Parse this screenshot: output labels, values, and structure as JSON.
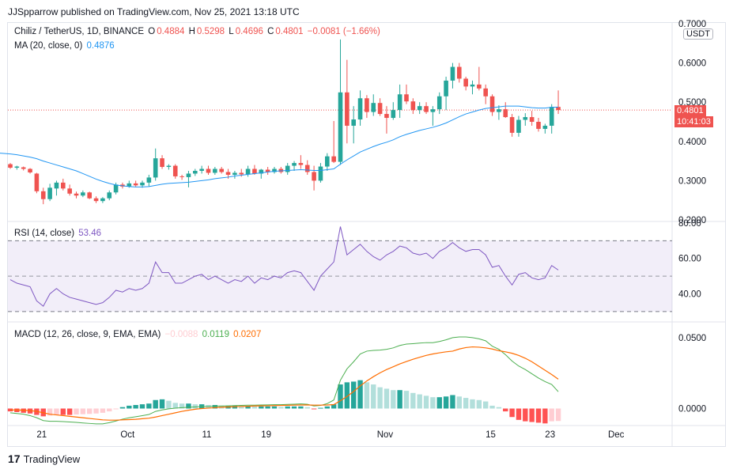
{
  "header": {
    "publisher": "JJSpparrow published on TradingView.com, Nov 25, 2021 13:18 UTC"
  },
  "symbol": {
    "name": "Chiliz / TetherUS, 1D, BINANCE",
    "open_label": "O",
    "open": "0.4884",
    "high_label": "H",
    "high": "0.5298",
    "low_label": "L",
    "low": "0.4696",
    "close_label": "C",
    "close": "0.4801",
    "change": "−0.0081 (−1.66%)"
  },
  "ma": {
    "label": "MA (20, close, 0)",
    "value": "0.4876"
  },
  "rsi": {
    "label": "RSI (14, close)",
    "value": "53.46"
  },
  "macd": {
    "label": "MACD (12, 26, close, 9, EMA, EMA)",
    "hist": "−0.0088",
    "macd": "0.0119",
    "signal": "0.0207"
  },
  "price_axis": {
    "unit": "USDT",
    "last_price": "0.4801",
    "countdown": "10:41:03",
    "ticks": [
      "0.7000",
      "0.6000",
      "0.5000",
      "0.4000",
      "0.3000",
      "0.2000"
    ]
  },
  "rsi_axis": {
    "ticks": [
      "80.00",
      "60.00",
      "40.00"
    ]
  },
  "macd_axis": {
    "ticks": [
      "0.0500",
      "0.0000"
    ]
  },
  "time_axis": {
    "ticks": [
      "21",
      "Oct",
      "11",
      "19",
      "Nov",
      "15",
      "23",
      "Dec"
    ]
  },
  "footer": {
    "brand": "TradingView"
  },
  "colors": {
    "up": "#26a69a",
    "down": "#ef5350",
    "ma": "#2196f3",
    "rsi": "#7e57c2",
    "macd": "#4caf50",
    "signal": "#ff6d00"
  },
  "chart_data": [
    {
      "type": "candlestick",
      "title": "Chiliz / TetherUS, 1D, BINANCE",
      "ylim": [
        0.2,
        0.7
      ],
      "x_ticks": [
        "21",
        "Oct",
        "11",
        "19",
        "Nov",
        "15",
        "23",
        "Dec"
      ],
      "candles": [
        [
          0.342,
          0.345,
          0.33,
          0.333
        ],
        [
          0.333,
          0.338,
          0.328,
          0.336
        ],
        [
          0.334,
          0.336,
          0.326,
          0.33
        ],
        [
          0.33,
          0.332,
          0.318,
          0.321
        ],
        [
          0.318,
          0.32,
          0.268,
          0.273
        ],
        [
          0.273,
          0.282,
          0.24,
          0.253
        ],
        [
          0.253,
          0.292,
          0.248,
          0.282
        ],
        [
          0.28,
          0.3,
          0.262,
          0.295
        ],
        [
          0.295,
          0.305,
          0.275,
          0.28
        ],
        [
          0.28,
          0.29,
          0.262,
          0.267
        ],
        [
          0.267,
          0.272,
          0.255,
          0.262
        ],
        [
          0.262,
          0.275,
          0.258,
          0.27
        ],
        [
          0.27,
          0.272,
          0.253,
          0.255
        ],
        [
          0.255,
          0.26,
          0.243,
          0.248
        ],
        [
          0.248,
          0.258,
          0.243,
          0.255
        ],
        [
          0.255,
          0.275,
          0.25,
          0.27
        ],
        [
          0.27,
          0.295,
          0.265,
          0.29
        ],
        [
          0.29,
          0.295,
          0.28,
          0.285
        ],
        [
          0.285,
          0.3,
          0.282,
          0.293
        ],
        [
          0.293,
          0.3,
          0.285,
          0.288
        ],
        [
          0.288,
          0.3,
          0.282,
          0.295
        ],
        [
          0.295,
          0.315,
          0.285,
          0.308
        ],
        [
          0.308,
          0.382,
          0.3,
          0.357
        ],
        [
          0.357,
          0.365,
          0.33,
          0.335
        ],
        [
          0.335,
          0.342,
          0.328,
          0.338
        ],
        [
          0.338,
          0.342,
          0.305,
          0.311
        ],
        [
          0.311,
          0.315,
          0.302,
          0.309
        ],
        [
          0.309,
          0.325,
          0.283,
          0.318
        ],
        [
          0.318,
          0.33,
          0.312,
          0.325
        ],
        [
          0.325,
          0.338,
          0.318,
          0.33
        ],
        [
          0.33,
          0.338,
          0.315,
          0.32
        ],
        [
          0.32,
          0.335,
          0.315,
          0.33
        ],
        [
          0.33,
          0.335,
          0.318,
          0.322
        ],
        [
          0.322,
          0.33,
          0.305,
          0.315
        ],
        [
          0.315,
          0.325,
          0.305,
          0.32
        ],
        [
          0.32,
          0.33,
          0.31,
          0.316
        ],
        [
          0.316,
          0.338,
          0.31,
          0.33
        ],
        [
          0.33,
          0.34,
          0.315,
          0.318
        ],
        [
          0.318,
          0.33,
          0.305,
          0.328
        ],
        [
          0.328,
          0.335,
          0.315,
          0.322
        ],
        [
          0.322,
          0.335,
          0.318,
          0.33
        ],
        [
          0.33,
          0.335,
          0.318,
          0.322
        ],
        [
          0.322,
          0.345,
          0.315,
          0.338
        ],
        [
          0.338,
          0.35,
          0.325,
          0.345
        ],
        [
          0.345,
          0.365,
          0.33,
          0.34
        ],
        [
          0.34,
          0.352,
          0.315,
          0.322
        ],
        [
          0.322,
          0.338,
          0.275,
          0.3
        ],
        [
          0.3,
          0.345,
          0.295,
          0.336
        ],
        [
          0.336,
          0.37,
          0.325,
          0.362
        ],
        [
          0.362,
          0.452,
          0.345,
          0.348
        ],
        [
          0.348,
          0.66,
          0.34,
          0.525
        ],
        [
          0.525,
          0.608,
          0.395,
          0.44
        ],
        [
          0.44,
          0.49,
          0.395,
          0.456
        ],
        [
          0.456,
          0.53,
          0.44,
          0.51
        ],
        [
          0.51,
          0.518,
          0.46,
          0.475
        ],
        [
          0.475,
          0.52,
          0.465,
          0.498
        ],
        [
          0.498,
          0.51,
          0.465,
          0.47
        ],
        [
          0.47,
          0.49,
          0.42,
          0.46
        ],
        [
          0.46,
          0.5,
          0.455,
          0.48
        ],
        [
          0.48,
          0.545,
          0.46,
          0.52
        ],
        [
          0.52,
          0.545,
          0.495,
          0.502
        ],
        [
          0.502,
          0.51,
          0.47,
          0.48
        ],
        [
          0.48,
          0.5,
          0.47,
          0.49
        ],
        [
          0.49,
          0.5,
          0.47,
          0.475
        ],
        [
          0.475,
          0.49,
          0.44,
          0.482
        ],
        [
          0.482,
          0.525,
          0.47,
          0.515
        ],
        [
          0.515,
          0.565,
          0.48,
          0.555
        ],
        [
          0.555,
          0.6,
          0.535,
          0.59
        ],
        [
          0.59,
          0.6,
          0.55,
          0.56
        ],
        [
          0.56,
          0.565,
          0.53,
          0.54
        ],
        [
          0.54,
          0.555,
          0.52,
          0.545
        ],
        [
          0.545,
          0.59,
          0.53,
          0.535
        ],
        [
          0.535,
          0.545,
          0.495,
          0.515
        ],
        [
          0.515,
          0.52,
          0.465,
          0.475
        ],
        [
          0.475,
          0.492,
          0.455,
          0.482
        ],
        [
          0.482,
          0.5,
          0.46,
          0.462
        ],
        [
          0.462,
          0.47,
          0.412,
          0.422
        ],
        [
          0.422,
          0.465,
          0.412,
          0.455
        ],
        [
          0.455,
          0.472,
          0.44,
          0.462
        ],
        [
          0.462,
          0.478,
          0.44,
          0.45
        ],
        [
          0.45,
          0.46,
          0.425,
          0.432
        ],
        [
          0.432,
          0.445,
          0.42,
          0.44
        ],
        [
          0.44,
          0.495,
          0.42,
          0.488
        ],
        [
          0.488,
          0.53,
          0.47,
          0.48
        ]
      ],
      "ma20": [
        0.368,
        0.366,
        0.363,
        0.36,
        0.356,
        0.35,
        0.345,
        0.34,
        0.335,
        0.33,
        0.325,
        0.318,
        0.311,
        0.304,
        0.298,
        0.293,
        0.289,
        0.287,
        0.285,
        0.284,
        0.284,
        0.285,
        0.288,
        0.291,
        0.293,
        0.294,
        0.295,
        0.296,
        0.298,
        0.3,
        0.302,
        0.305,
        0.307,
        0.309,
        0.312,
        0.314,
        0.316,
        0.318,
        0.32,
        0.322,
        0.324,
        0.325,
        0.326,
        0.327,
        0.328,
        0.327,
        0.326,
        0.326,
        0.328,
        0.33,
        0.342,
        0.353,
        0.363,
        0.373,
        0.38,
        0.387,
        0.393,
        0.398,
        0.404,
        0.412,
        0.418,
        0.423,
        0.428,
        0.432,
        0.436,
        0.441,
        0.447,
        0.455,
        0.463,
        0.47,
        0.475,
        0.48,
        0.484,
        0.486,
        0.488,
        0.49,
        0.49,
        0.49,
        0.488,
        0.486,
        0.485,
        0.485,
        0.487,
        0.4876
      ]
    },
    {
      "type": "line",
      "title": "RSI (14, close)",
      "ylim": [
        25,
        80
      ],
      "bands": [
        70,
        50,
        30
      ],
      "series": [
        {
          "name": "RSI (14, close)",
          "values": [
            48,
            46,
            45,
            44,
            36,
            33,
            40,
            43,
            40,
            38,
            37,
            36,
            35,
            34,
            35,
            38,
            42,
            41,
            43,
            42,
            43,
            46,
            58,
            52,
            52,
            46,
            46,
            48,
            50,
            51,
            48,
            50,
            48,
            46,
            48,
            47,
            50,
            46,
            49,
            48,
            50,
            49,
            52,
            53,
            52,
            47,
            42,
            50,
            54,
            58,
            78,
            62,
            65,
            68,
            64,
            61,
            59,
            62,
            64,
            67,
            66,
            63,
            62,
            63,
            60,
            64,
            66,
            69,
            66,
            64,
            65,
            65,
            62,
            55,
            56,
            50,
            45,
            51,
            52,
            49,
            48,
            49,
            56,
            53.46
          ]
        }
      ]
    },
    {
      "type": "bar",
      "title": "MACD (12, 26, close, 9, EMA, EMA)",
      "ylim": [
        -0.012,
        0.06
      ],
      "series": [
        {
          "name": "hist",
          "values": [
            -0.002,
            -0.0025,
            -0.003,
            -0.0035,
            -0.0045,
            -0.0055,
            -0.005,
            -0.0045,
            -0.0045,
            -0.0045,
            -0.0042,
            -0.004,
            -0.0038,
            -0.0035,
            -0.003,
            -0.002,
            -0.0005,
            0.001,
            0.002,
            0.0025,
            0.003,
            0.0035,
            0.006,
            0.0065,
            0.0055,
            0.004,
            0.0035,
            0.0035,
            0.003,
            0.003,
            0.0025,
            0.0025,
            0.002,
            0.002,
            0.002,
            0.0018,
            0.0018,
            0.0015,
            0.0015,
            0.0015,
            0.0015,
            0.0012,
            0.0015,
            0.0015,
            0.0015,
            0.001,
            -0.0005,
            0.0005,
            0.0015,
            0.003,
            0.017,
            0.0185,
            0.019,
            0.02,
            0.0185,
            0.017,
            0.015,
            0.014,
            0.013,
            0.013,
            0.0125,
            0.011,
            0.01,
            0.009,
            0.008,
            0.008,
            0.0085,
            0.0095,
            0.0085,
            0.0075,
            0.0065,
            0.006,
            0.005,
            0.002,
            0.001,
            -0.002,
            -0.006,
            -0.008,
            -0.009,
            -0.0095,
            -0.01,
            -0.0105,
            -0.009,
            -0.0088
          ]
        },
        {
          "name": "MACD",
          "values": [
            -0.003,
            -0.0035,
            -0.004,
            -0.005,
            -0.0065,
            -0.0085,
            -0.009,
            -0.009,
            -0.0092,
            -0.0095,
            -0.0098,
            -0.0102,
            -0.0105,
            -0.0108,
            -0.0108,
            -0.01,
            -0.0088,
            -0.0075,
            -0.0065,
            -0.0058,
            -0.005,
            -0.0042,
            -0.002,
            -0.001,
            -0.0002,
            0.0003,
            0.0006,
            0.0009,
            0.0011,
            0.0014,
            0.0015,
            0.0017,
            0.0018,
            0.0019,
            0.0021,
            0.0022,
            0.0024,
            0.0024,
            0.0025,
            0.0026,
            0.0027,
            0.0027,
            0.0029,
            0.0031,
            0.0033,
            0.003,
            0.0018,
            0.0022,
            0.0035,
            0.006,
            0.02,
            0.028,
            0.033,
            0.0385,
            0.0405,
            0.041,
            0.0412,
            0.0418,
            0.0428,
            0.0445,
            0.0455,
            0.0458,
            0.0462,
            0.0465,
            0.0465,
            0.0473,
            0.0485,
            0.05,
            0.0505,
            0.0505,
            0.05,
            0.0492,
            0.0478,
            0.044,
            0.0418,
            0.038,
            0.0335,
            0.03,
            0.0275,
            0.0245,
            0.0215,
            0.019,
            0.017,
            0.0119
          ]
        },
        {
          "name": "signal",
          "values": [
            -0.001,
            -0.001,
            -0.0012,
            -0.0015,
            -0.002,
            -0.003,
            -0.004,
            -0.0045,
            -0.005,
            -0.0055,
            -0.006,
            -0.0065,
            -0.007,
            -0.0075,
            -0.008,
            -0.0082,
            -0.0082,
            -0.008,
            -0.0078,
            -0.0076,
            -0.0072,
            -0.0068,
            -0.006,
            -0.005,
            -0.004,
            -0.003,
            -0.002,
            -0.0012,
            -0.0005,
            0.0,
            0.0003,
            0.0006,
            0.0009,
            0.0011,
            0.0013,
            0.0015,
            0.0016,
            0.0018,
            0.0019,
            0.002,
            0.0021,
            0.0022,
            0.0023,
            0.0024,
            0.0025,
            0.0025,
            0.0024,
            0.0024,
            0.0025,
            0.0028,
            0.0055,
            0.0085,
            0.012,
            0.016,
            0.0195,
            0.0225,
            0.0252,
            0.0275,
            0.0295,
            0.0315,
            0.0332,
            0.0348,
            0.0362,
            0.0375,
            0.0385,
            0.0393,
            0.04,
            0.0405,
            0.042,
            0.043,
            0.0435,
            0.0433,
            0.0428,
            0.042,
            0.0408,
            0.04,
            0.039,
            0.0375,
            0.0355,
            0.033,
            0.03,
            0.027,
            0.024,
            0.0207
          ]
        }
      ]
    }
  ]
}
